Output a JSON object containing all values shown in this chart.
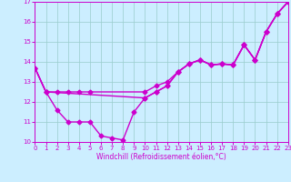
{
  "xlabel": "Windchill (Refroidissement éolien,°C)",
  "bg_color": "#cceeff",
  "line_color": "#cc00cc",
  "grid_color": "#99cccc",
  "xlim": [
    0,
    23
  ],
  "ylim": [
    10,
    17
  ],
  "yticks": [
    10,
    11,
    12,
    13,
    14,
    15,
    16,
    17
  ],
  "xticks": [
    0,
    1,
    2,
    3,
    4,
    5,
    6,
    7,
    8,
    9,
    10,
    11,
    12,
    13,
    14,
    15,
    16,
    17,
    18,
    19,
    20,
    21,
    22,
    23
  ],
  "line1_x": [
    0,
    1,
    2,
    3,
    4,
    5,
    10,
    11,
    12,
    13,
    14,
    15,
    16,
    17,
    18,
    19,
    20,
    21,
    22,
    23
  ],
  "line1_y": [
    13.7,
    12.5,
    12.5,
    12.5,
    12.5,
    12.5,
    12.5,
    12.8,
    13.0,
    13.5,
    13.9,
    14.1,
    13.85,
    13.9,
    13.85,
    14.85,
    14.1,
    15.5,
    16.4,
    17.0
  ],
  "line2_x": [
    0,
    1,
    2,
    3,
    4,
    5,
    6,
    7,
    8,
    9,
    10,
    11,
    12,
    13,
    14,
    15,
    16,
    17,
    18,
    19,
    20,
    21,
    22,
    23
  ],
  "line2_y": [
    13.7,
    12.5,
    11.6,
    11.0,
    11.0,
    11.0,
    10.3,
    10.2,
    10.1,
    11.5,
    12.2,
    12.5,
    12.8,
    13.5,
    13.9,
    14.1,
    13.85,
    13.9,
    13.85,
    14.85,
    14.1,
    15.5,
    16.4,
    17.0
  ],
  "line3_x": [
    0,
    1,
    10,
    11,
    12,
    13,
    14,
    15,
    16,
    17,
    18,
    19,
    20,
    21,
    22,
    23
  ],
  "line3_y": [
    13.7,
    12.5,
    12.2,
    12.5,
    12.8,
    13.5,
    13.9,
    14.1,
    13.85,
    13.9,
    13.85,
    14.85,
    14.1,
    15.5,
    16.4,
    17.0
  ],
  "marker": "D",
  "marker_size": 2.5,
  "line_width": 1.0,
  "tick_fontsize": 5.0,
  "xlabel_fontsize": 5.5
}
